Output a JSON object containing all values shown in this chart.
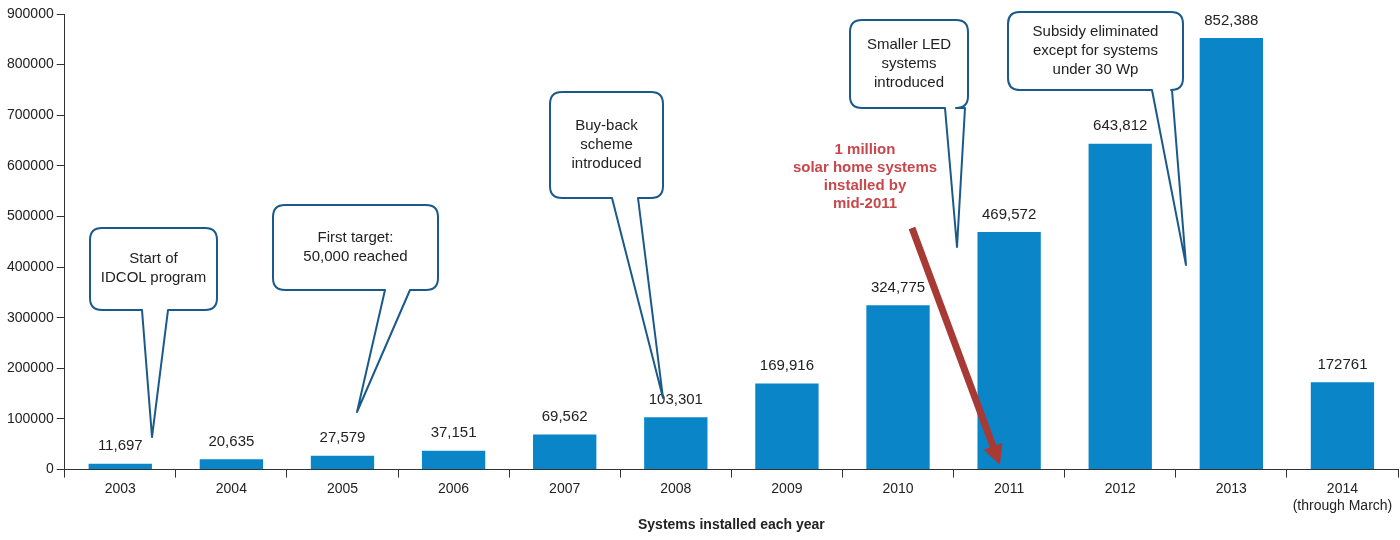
{
  "chart_data": {
    "type": "bar",
    "xlabel": "Systems installed each year",
    "categories": [
      "2003",
      "2004",
      "2005",
      "2006",
      "2007",
      "2008",
      "2009",
      "2010",
      "2011",
      "2012",
      "2013",
      "2014\n(through March)"
    ],
    "values": [
      11697,
      20635,
      27579,
      37151,
      69562,
      103301,
      169916,
      324775,
      469572,
      643812,
      852388,
      172761
    ],
    "value_labels": [
      "11,697",
      "20,635",
      "27,579",
      "37,151",
      "69,562",
      "103,301",
      "169,916",
      "324,775",
      "469,572",
      "643,812",
      "852,388",
      "172761"
    ],
    "color": "#0a86c8",
    "ylim": [
      0,
      900000
    ],
    "yticks": [
      0,
      100000,
      200000,
      300000,
      400000,
      500000,
      600000,
      700000,
      800000,
      900000
    ],
    "legend": false,
    "annotations": [
      "Start of\nIDCOL program",
      "First target:\n50,000 reached",
      "Buy-back\nscheme\nintroduced",
      "Smaller LED\nsystems\nintroduced",
      "Subsidy eliminated\nexcept for systems\nunder 30 Wp",
      "1 million\nsolar home systems\ninstalled by\nmid-2011"
    ]
  }
}
